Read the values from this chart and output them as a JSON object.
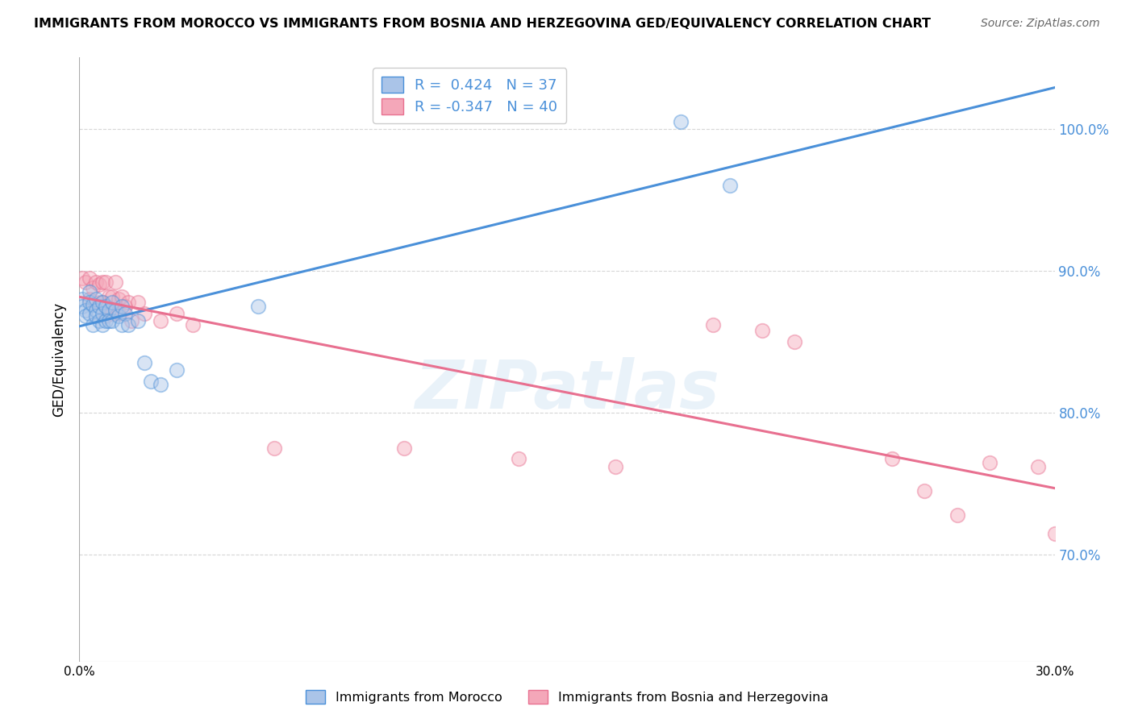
{
  "title": "IMMIGRANTS FROM MOROCCO VS IMMIGRANTS FROM BOSNIA AND HERZEGOVINA GED/EQUIVALENCY CORRELATION CHART",
  "source": "Source: ZipAtlas.com",
  "ylabel": "GED/Equivalency",
  "watermark": "ZIPatlas",
  "legend_morocco_R": 0.424,
  "legend_morocco_N": 37,
  "legend_bosnia_R": -0.347,
  "legend_bosnia_N": 40,
  "morocco_scatter_x": [
    0.001,
    0.001,
    0.002,
    0.002,
    0.003,
    0.003,
    0.003,
    0.004,
    0.004,
    0.005,
    0.005,
    0.005,
    0.006,
    0.006,
    0.007,
    0.007,
    0.007,
    0.008,
    0.008,
    0.009,
    0.009,
    0.01,
    0.01,
    0.011,
    0.012,
    0.013,
    0.013,
    0.014,
    0.015,
    0.018,
    0.02,
    0.022,
    0.025,
    0.03,
    0.055,
    0.185,
    0.2
  ],
  "morocco_scatter_y": [
    0.88,
    0.875,
    0.872,
    0.868,
    0.885,
    0.878,
    0.87,
    0.876,
    0.862,
    0.88,
    0.872,
    0.868,
    0.875,
    0.865,
    0.878,
    0.87,
    0.862,
    0.875,
    0.865,
    0.872,
    0.865,
    0.878,
    0.865,
    0.872,
    0.868,
    0.875,
    0.862,
    0.87,
    0.862,
    0.865,
    0.835,
    0.822,
    0.82,
    0.83,
    0.875,
    1.005,
    0.96
  ],
  "bosnia_scatter_x": [
    0.001,
    0.002,
    0.003,
    0.003,
    0.004,
    0.005,
    0.006,
    0.006,
    0.007,
    0.007,
    0.008,
    0.008,
    0.009,
    0.01,
    0.01,
    0.011,
    0.012,
    0.012,
    0.013,
    0.014,
    0.015,
    0.016,
    0.018,
    0.02,
    0.025,
    0.03,
    0.035,
    0.06,
    0.1,
    0.135,
    0.165,
    0.195,
    0.21,
    0.22,
    0.25,
    0.26,
    0.27,
    0.28,
    0.295,
    0.3
  ],
  "bosnia_scatter_y": [
    0.895,
    0.892,
    0.895,
    0.88,
    0.888,
    0.892,
    0.89,
    0.878,
    0.892,
    0.878,
    0.892,
    0.868,
    0.882,
    0.882,
    0.87,
    0.892,
    0.88,
    0.87,
    0.882,
    0.875,
    0.878,
    0.865,
    0.878,
    0.87,
    0.865,
    0.87,
    0.862,
    0.775,
    0.775,
    0.768,
    0.762,
    0.862,
    0.858,
    0.85,
    0.768,
    0.745,
    0.728,
    0.765,
    0.762,
    0.715
  ],
  "xlim": [
    0.0,
    0.3
  ],
  "ylim": [
    0.625,
    1.05
  ],
  "ytick_positions": [
    0.7,
    0.8,
    0.9,
    1.0
  ],
  "ytick_labels": [
    "70.0%",
    "80.0%",
    "90.0%",
    "100.0%"
  ],
  "xtick_positions": [
    0.0,
    0.05,
    0.1,
    0.15,
    0.2,
    0.25,
    0.3
  ],
  "xtick_labels": [
    "0.0%",
    "",
    "",
    "",
    "",
    "",
    "30.0%"
  ],
  "scatter_size": 160,
  "scatter_alpha": 0.45,
  "line_color_morocco": "#4a90d9",
  "line_color_bosnia": "#e87090",
  "scatter_color_morocco": "#aac4e8",
  "scatter_color_bosnia": "#f4a7b9",
  "grid_color": "#cccccc",
  "background_color": "#ffffff"
}
